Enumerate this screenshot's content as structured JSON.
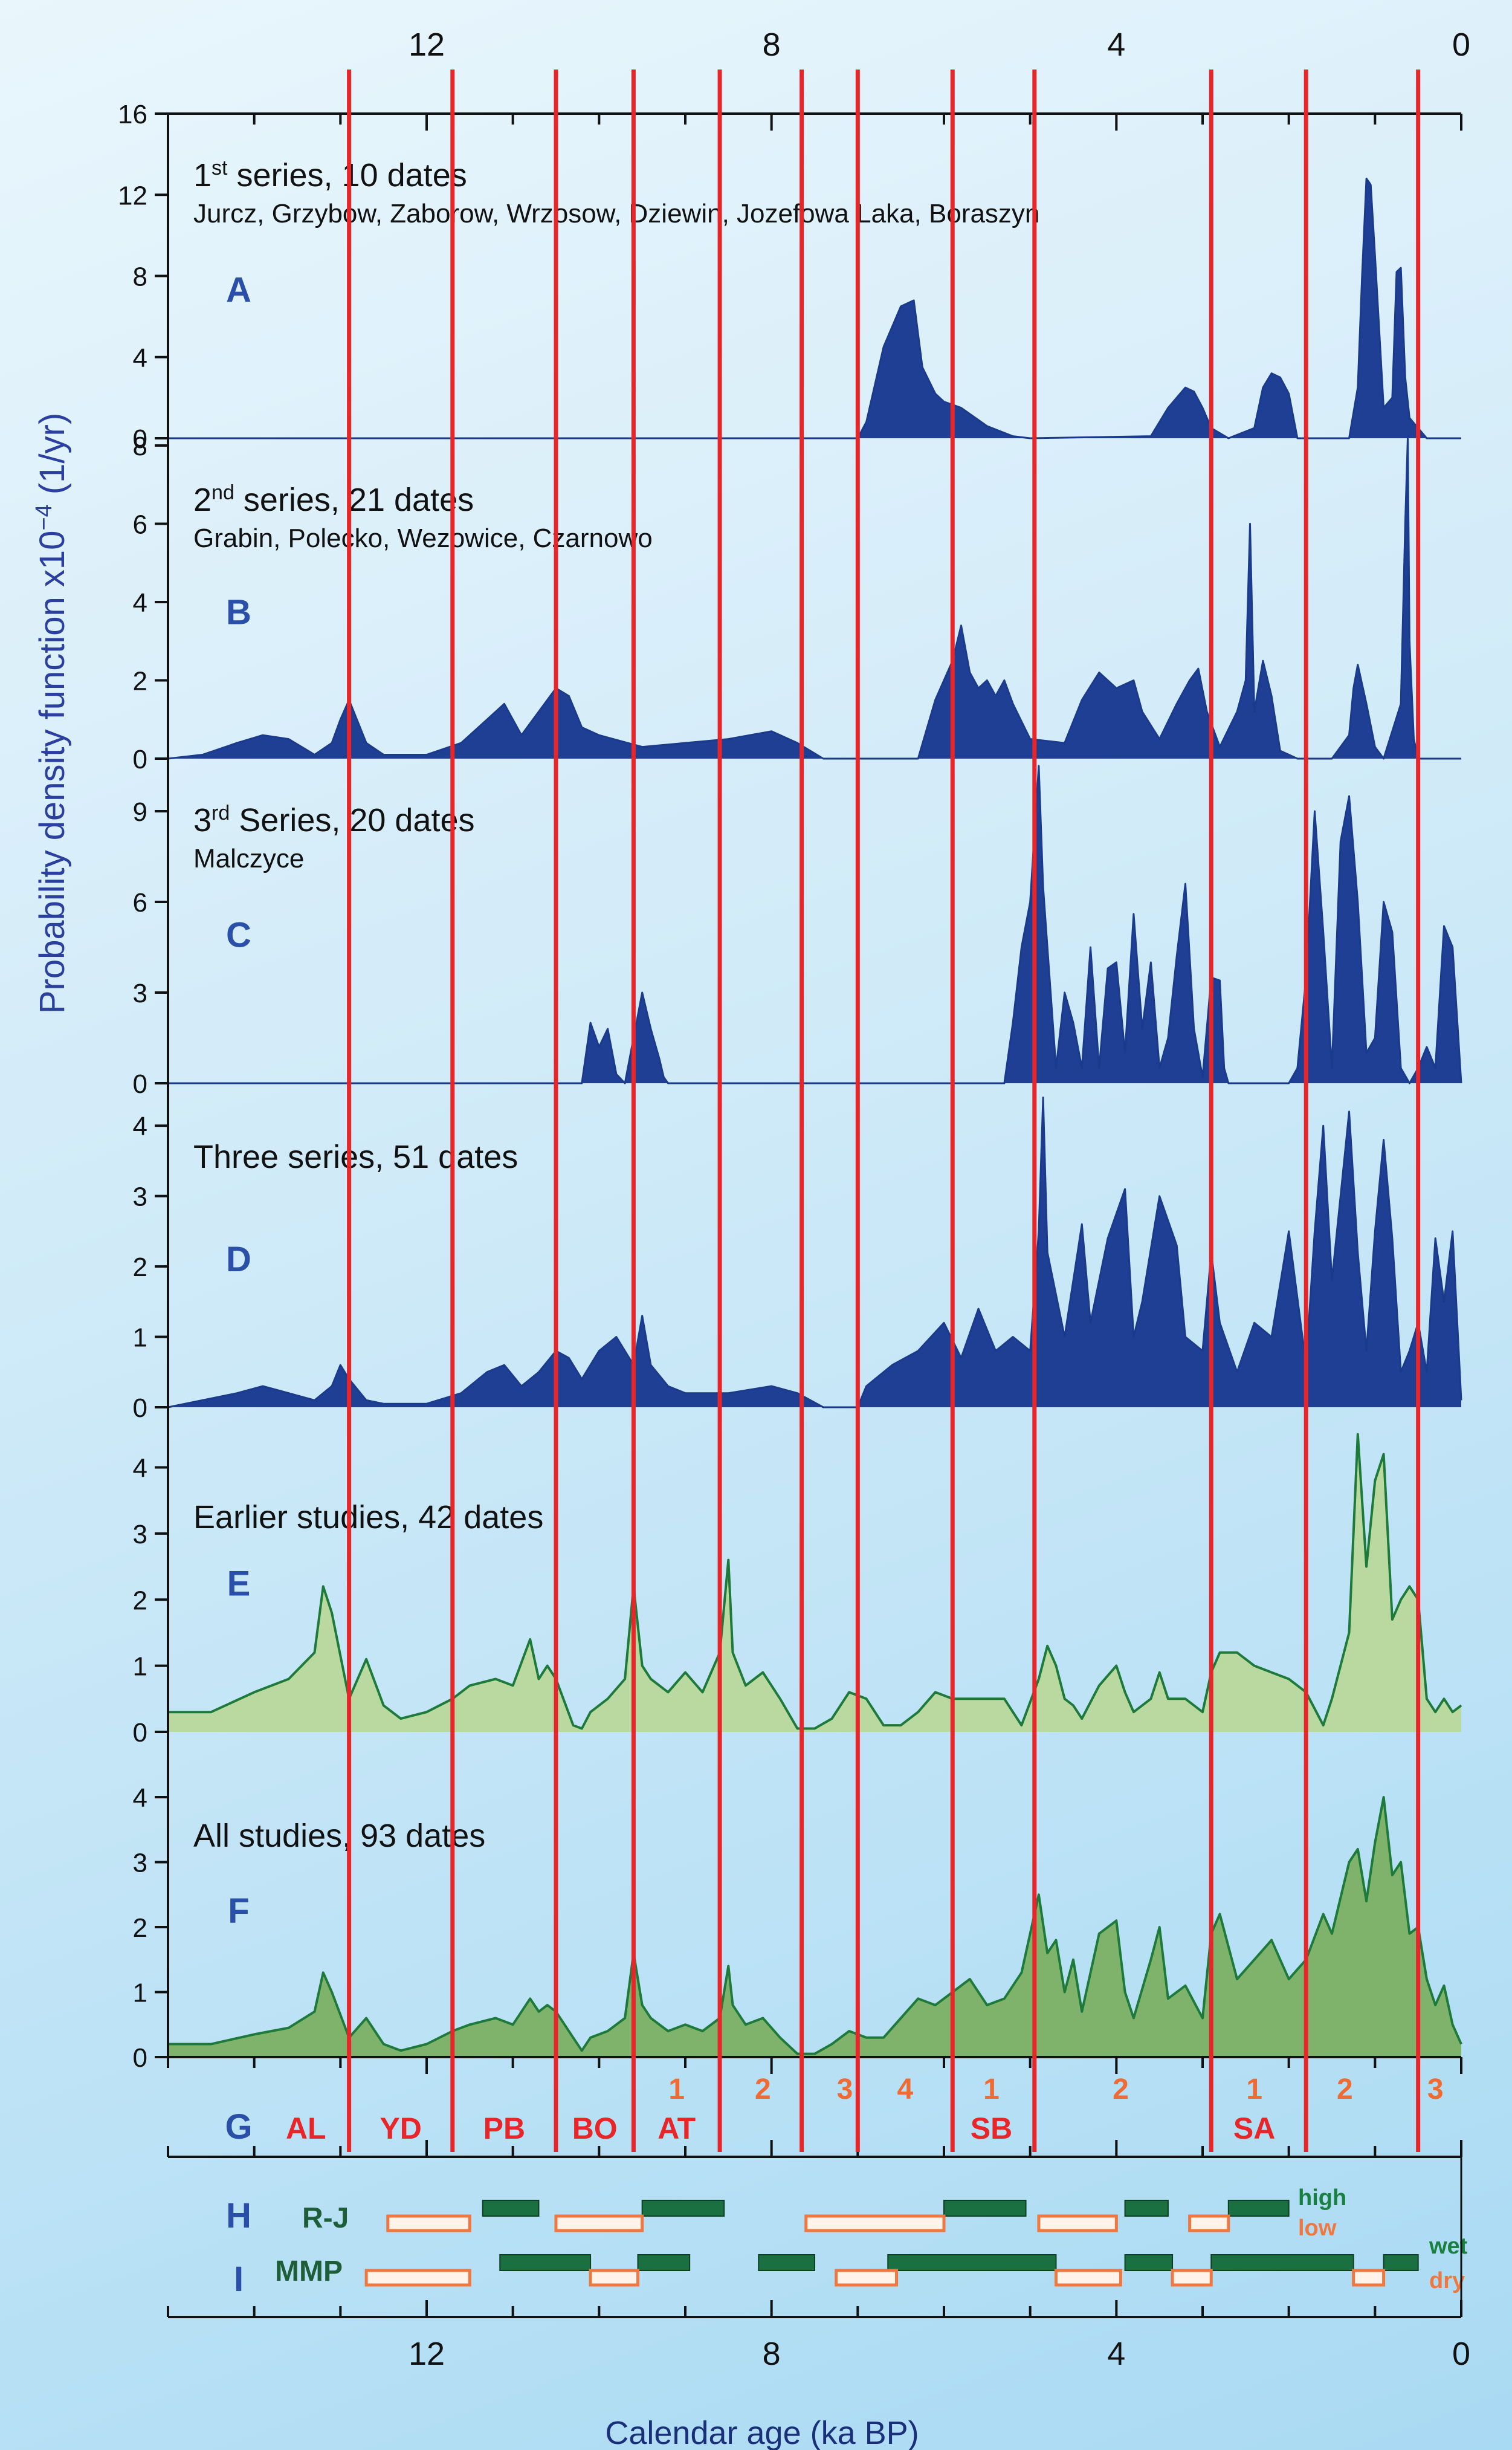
{
  "chart_data": [
    {
      "type": "area",
      "id": "A",
      "panel_letter": "A",
      "label_sup": "st",
      "label_num": "1",
      "label_rest": " series, 10 dates",
      "sites": "Jurcz, Grzybow, Zaborow, Wrzosow, Dziewin, Jozefowa Laka, Boraszyn",
      "ylim": [
        0,
        16
      ],
      "yticks": [
        0,
        4,
        8,
        12,
        16
      ],
      "ytick_labels": [
        "0",
        "4",
        "8",
        "12",
        "16"
      ],
      "style": "dark",
      "x": [
        15.0,
        7.0,
        6.9,
        6.7,
        6.5,
        6.35,
        6.25,
        6.1,
        6.0,
        5.8,
        5.5,
        5.2,
        5.0,
        3.6,
        3.4,
        3.2,
        3.1,
        3.0,
        2.9,
        2.7,
        2.4,
        2.3,
        2.2,
        2.1,
        2.0,
        1.9,
        1.3,
        1.2,
        1.15,
        1.1,
        1.05,
        1.0,
        0.9,
        0.8,
        0.75,
        0.7,
        0.65,
        0.6,
        0.5,
        0.4,
        0.0
      ],
      "y": [
        0,
        0,
        0.8,
        4.5,
        6.5,
        6.8,
        3.5,
        2.2,
        1.8,
        1.5,
        0.6,
        0.1,
        0,
        0.1,
        1.5,
        2.5,
        2.3,
        1.5,
        0.5,
        0,
        0.5,
        2.5,
        3.2,
        3.0,
        2.2,
        0,
        0,
        2.5,
        8.0,
        12.8,
        12.5,
        9.0,
        1.5,
        2.0,
        8.2,
        8.4,
        3.0,
        1.0,
        0.5,
        0,
        0
      ]
    },
    {
      "type": "area",
      "id": "B",
      "panel_letter": "B",
      "label_sup": "nd",
      "label_num": "2",
      "label_rest": " series, 21 dates",
      "sites": "Grabin, Polecko, Wezowice, Czarnowo",
      "ylim": [
        0,
        8
      ],
      "yticks": [
        0,
        2,
        4,
        6,
        8
      ],
      "ytick_labels": [
        "0",
        "2",
        "4",
        "6",
        "8"
      ],
      "style": "dark",
      "x": [
        15.0,
        14.6,
        14.2,
        13.9,
        13.6,
        13.3,
        13.1,
        13.0,
        12.9,
        12.7,
        12.5,
        12.0,
        11.6,
        11.3,
        11.1,
        10.9,
        10.7,
        10.5,
        10.35,
        10.2,
        10.0,
        9.5,
        9.0,
        8.5,
        8.0,
        7.7,
        7.4,
        6.3,
        6.1,
        5.9,
        5.8,
        5.7,
        5.6,
        5.5,
        5.4,
        5.3,
        5.2,
        5.0,
        4.6,
        4.4,
        4.2,
        4.0,
        3.8,
        3.7,
        3.5,
        3.3,
        3.15,
        3.05,
        2.95,
        2.8,
        2.6,
        2.5,
        2.45,
        2.4,
        2.3,
        2.2,
        2.1,
        1.9,
        1.8,
        1.5,
        1.3,
        1.25,
        1.2,
        1.1,
        1.0,
        0.9,
        0.7,
        0.65,
        0.62,
        0.6,
        0.55,
        0.5,
        0.0
      ],
      "y": [
        0,
        0.1,
        0.4,
        0.6,
        0.5,
        0.1,
        0.4,
        1.0,
        1.5,
        0.4,
        0.1,
        0.1,
        0.4,
        1.0,
        1.4,
        0.6,
        1.2,
        1.8,
        1.6,
        0.8,
        0.6,
        0.3,
        0.4,
        0.5,
        0.7,
        0.4,
        0.0,
        0.0,
        1.5,
        2.5,
        3.4,
        2.2,
        1.8,
        2.0,
        1.6,
        2.0,
        1.4,
        0.5,
        0.4,
        1.5,
        2.2,
        1.8,
        2.0,
        1.2,
        0.5,
        1.4,
        2.0,
        2.3,
        1.2,
        0.3,
        1.2,
        2.0,
        6.0,
        1.2,
        2.5,
        1.6,
        0.2,
        0.0,
        0.0,
        0.0,
        0.6,
        1.8,
        2.4,
        1.4,
        0.3,
        0.0,
        1.4,
        6.0,
        8.2,
        3.0,
        0.5,
        0.0,
        0.0
      ]
    },
    {
      "type": "area",
      "id": "C",
      "panel_letter": "C",
      "label_sup": "rd",
      "label_num": "3",
      "label_rest": " Series, 20 dates",
      "sites": "Malczyce",
      "ylim": [
        0,
        10.5
      ],
      "yticks": [
        0,
        3,
        6,
        9
      ],
      "ytick_labels": [
        "0",
        "3",
        "6",
        "9"
      ],
      "style": "dark",
      "x": [
        15.0,
        10.2,
        10.1,
        10.0,
        9.9,
        9.8,
        9.7,
        9.6,
        9.5,
        9.4,
        9.3,
        9.25,
        9.2,
        5.3,
        5.2,
        5.1,
        5.0,
        4.9,
        4.85,
        4.8,
        4.7,
        4.6,
        4.5,
        4.4,
        4.3,
        4.2,
        4.1,
        4.0,
        3.9,
        3.8,
        3.7,
        3.6,
        3.5,
        3.4,
        3.3,
        3.2,
        3.1,
        3.0,
        2.9,
        2.8,
        2.75,
        2.7,
        2.5,
        2.0,
        1.9,
        1.8,
        1.7,
        1.6,
        1.5,
        1.4,
        1.3,
        1.2,
        1.1,
        1.0,
        0.9,
        0.8,
        0.7,
        0.6,
        0.5,
        0.4,
        0.3,
        0.2,
        0.1,
        0.0
      ],
      "y": [
        0,
        0,
        2.0,
        1.2,
        1.8,
        0.3,
        0.0,
        1.5,
        3.0,
        1.8,
        0.8,
        0.2,
        0,
        0,
        2.0,
        4.5,
        6.0,
        10.5,
        6.5,
        4.5,
        0.5,
        3.0,
        2.0,
        0.5,
        4.5,
        0.5,
        3.8,
        4.0,
        1.0,
        5.6,
        1.8,
        4.0,
        0.5,
        1.5,
        4.2,
        6.6,
        1.8,
        0.2,
        3.5,
        3.4,
        0.5,
        0,
        0,
        0,
        0.5,
        3.5,
        9.0,
        5.0,
        0.5,
        8.0,
        9.5,
        6.0,
        1.0,
        1.5,
        6.0,
        5.0,
        0.5,
        0.0,
        0.5,
        1.2,
        0.5,
        5.2,
        4.5,
        0.0
      ]
    },
    {
      "type": "area",
      "id": "D",
      "panel_letter": "D",
      "label_sup": "",
      "label_num": "",
      "label_rest": "Three series, 51 dates",
      "sites": "",
      "ylim": [
        0,
        4.5
      ],
      "yticks": [
        0,
        1,
        2,
        3,
        4
      ],
      "ytick_labels": [
        "0",
        "1",
        "2",
        "3",
        "4"
      ],
      "style": "dark",
      "x": [
        15.0,
        14.6,
        14.2,
        13.9,
        13.6,
        13.3,
        13.1,
        13.0,
        12.9,
        12.7,
        12.5,
        12.0,
        11.6,
        11.3,
        11.1,
        10.9,
        10.7,
        10.5,
        10.35,
        10.2,
        10.0,
        9.8,
        9.6,
        9.5,
        9.4,
        9.2,
        9.0,
        8.5,
        8.0,
        7.7,
        7.4,
        7.0,
        6.9,
        6.6,
        6.3,
        6.0,
        5.8,
        5.6,
        5.4,
        5.2,
        5.0,
        4.9,
        4.85,
        4.8,
        4.6,
        4.4,
        4.3,
        4.1,
        3.9,
        3.8,
        3.7,
        3.5,
        3.3,
        3.2,
        3.0,
        2.9,
        2.8,
        2.6,
        2.4,
        2.2,
        2.0,
        1.8,
        1.7,
        1.6,
        1.5,
        1.4,
        1.3,
        1.2,
        1.1,
        1.0,
        0.9,
        0.8,
        0.7,
        0.6,
        0.5,
        0.4,
        0.3,
        0.2,
        0.1,
        0.0
      ],
      "y": [
        0,
        0.1,
        0.2,
        0.3,
        0.2,
        0.1,
        0.3,
        0.6,
        0.4,
        0.1,
        0.05,
        0.05,
        0.2,
        0.5,
        0.6,
        0.3,
        0.5,
        0.8,
        0.7,
        0.4,
        0.8,
        1.0,
        0.6,
        1.3,
        0.6,
        0.3,
        0.2,
        0.2,
        0.3,
        0.2,
        0.0,
        0.0,
        0.3,
        0.6,
        0.8,
        1.2,
        0.7,
        1.4,
        0.8,
        1.0,
        0.8,
        2.5,
        4.4,
        2.2,
        1.0,
        2.6,
        1.2,
        2.4,
        3.1,
        1.0,
        1.5,
        3.0,
        2.3,
        1.0,
        0.8,
        2.2,
        1.2,
        0.5,
        1.2,
        1.0,
        2.5,
        0.6,
        2.5,
        4.0,
        1.8,
        3.0,
        4.2,
        2.2,
        0.8,
        2.5,
        3.8,
        2.4,
        0.5,
        0.8,
        1.2,
        0.5,
        2.4,
        1.5,
        2.5,
        0.1
      ]
    },
    {
      "type": "area",
      "id": "E",
      "panel_letter": "E",
      "label_sup": "",
      "label_num": "",
      "label_rest": "Earlier studies, 42 dates",
      "sites": "",
      "ylim": [
        0,
        4.8
      ],
      "yticks": [
        0,
        1,
        2,
        3,
        4
      ],
      "ytick_labels": [
        "0",
        "1",
        "2",
        "3",
        "4"
      ],
      "style": "light",
      "x": [
        15.0,
        14.5,
        14.0,
        13.6,
        13.3,
        13.2,
        13.1,
        12.9,
        12.7,
        12.5,
        12.3,
        12.0,
        11.7,
        11.5,
        11.2,
        11.0,
        10.8,
        10.7,
        10.6,
        10.5,
        10.3,
        10.2,
        10.1,
        9.9,
        9.7,
        9.6,
        9.5,
        9.4,
        9.2,
        9.0,
        8.8,
        8.6,
        8.5,
        8.45,
        8.3,
        8.1,
        7.9,
        7.7,
        7.5,
        7.3,
        7.1,
        6.9,
        6.7,
        6.5,
        6.3,
        6.1,
        5.9,
        5.7,
        5.5,
        5.3,
        5.1,
        4.9,
        4.8,
        4.7,
        4.6,
        4.5,
        4.4,
        4.2,
        4.0,
        3.9,
        3.8,
        3.6,
        3.5,
        3.4,
        3.2,
        3.0,
        2.9,
        2.8,
        2.6,
        2.4,
        2.2,
        2.0,
        1.8,
        1.6,
        1.5,
        1.3,
        1.2,
        1.1,
        1.0,
        0.9,
        0.8,
        0.7,
        0.6,
        0.5,
        0.4,
        0.3,
        0.2,
        0.1,
        0.0
      ],
      "y": [
        0.3,
        0.3,
        0.6,
        0.8,
        1.2,
        2.2,
        1.8,
        0.5,
        1.1,
        0.4,
        0.2,
        0.3,
        0.5,
        0.7,
        0.8,
        0.7,
        1.4,
        0.8,
        1.0,
        0.8,
        0.1,
        0.05,
        0.3,
        0.5,
        0.8,
        2.2,
        1.0,
        0.8,
        0.6,
        0.9,
        0.6,
        1.2,
        2.6,
        1.2,
        0.7,
        0.9,
        0.5,
        0.05,
        0.05,
        0.2,
        0.6,
        0.5,
        0.1,
        0.1,
        0.3,
        0.6,
        0.5,
        0.5,
        0.5,
        0.5,
        0.1,
        0.8,
        1.3,
        1.0,
        0.5,
        0.4,
        0.2,
        0.7,
        1.0,
        0.6,
        0.3,
        0.5,
        0.9,
        0.5,
        0.5,
        0.3,
        0.9,
        1.2,
        1.2,
        1.0,
        0.9,
        0.8,
        0.6,
        0.1,
        0.5,
        1.5,
        4.5,
        2.5,
        3.8,
        4.2,
        1.7,
        2.0,
        2.2,
        2.0,
        0.5,
        0.3,
        0.5,
        0.3,
        0.4
      ]
    },
    {
      "type": "area",
      "id": "F",
      "panel_letter": "F",
      "label_sup": "",
      "label_num": "",
      "label_rest": "All studies, 93 dates",
      "sites": "",
      "ylim": [
        0,
        4.8
      ],
      "yticks": [
        0,
        1,
        2,
        3,
        4
      ],
      "ytick_labels": [
        "0",
        "1",
        "2",
        "3",
        "4"
      ],
      "style": "medium",
      "x": [
        15.0,
        14.5,
        14.0,
        13.6,
        13.3,
        13.2,
        13.1,
        12.9,
        12.7,
        12.5,
        12.3,
        12.0,
        11.7,
        11.5,
        11.2,
        11.0,
        10.8,
        10.7,
        10.6,
        10.5,
        10.3,
        10.2,
        10.1,
        9.9,
        9.7,
        9.6,
        9.5,
        9.4,
        9.2,
        9.0,
        8.8,
        8.6,
        8.5,
        8.45,
        8.3,
        8.1,
        7.9,
        7.7,
        7.5,
        7.3,
        7.1,
        6.9,
        6.7,
        6.5,
        6.3,
        6.1,
        5.9,
        5.7,
        5.5,
        5.3,
        5.1,
        4.9,
        4.8,
        4.7,
        4.6,
        4.5,
        4.4,
        4.2,
        4.0,
        3.9,
        3.8,
        3.6,
        3.5,
        3.4,
        3.2,
        3.0,
        2.9,
        2.8,
        2.6,
        2.4,
        2.2,
        2.0,
        1.8,
        1.6,
        1.5,
        1.3,
        1.2,
        1.1,
        1.0,
        0.9,
        0.8,
        0.7,
        0.6,
        0.5,
        0.4,
        0.3,
        0.2,
        0.1,
        0.0
      ],
      "y": [
        0.2,
        0.2,
        0.35,
        0.45,
        0.7,
        1.3,
        1.0,
        0.3,
        0.6,
        0.2,
        0.1,
        0.2,
        0.4,
        0.5,
        0.6,
        0.5,
        0.9,
        0.7,
        0.8,
        0.7,
        0.3,
        0.1,
        0.3,
        0.4,
        0.6,
        1.6,
        0.8,
        0.6,
        0.4,
        0.5,
        0.4,
        0.6,
        1.4,
        0.8,
        0.5,
        0.6,
        0.3,
        0.05,
        0.05,
        0.2,
        0.4,
        0.3,
        0.3,
        0.6,
        0.9,
        0.8,
        1.0,
        1.2,
        0.8,
        0.9,
        1.3,
        2.5,
        1.6,
        1.8,
        1.0,
        1.5,
        0.7,
        1.9,
        2.1,
        1.0,
        0.6,
        1.5,
        2.0,
        0.9,
        1.1,
        0.6,
        1.9,
        2.2,
        1.2,
        1.5,
        1.8,
        1.2,
        1.5,
        2.2,
        1.9,
        3.0,
        3.2,
        2.4,
        3.3,
        4.0,
        2.8,
        3.0,
        1.9,
        2.0,
        1.2,
        0.8,
        1.1,
        0.5,
        0.2
      ]
    }
  ],
  "axis": {
    "xlabel": "Calendar age  (ka BP)",
    "ylabel_main": "Probability density function  x10",
    "ylabel_exp": "−4",
    "ylabel_unit": " (1/yr)",
    "xlim": [
      15,
      0
    ],
    "xticks_labeled": [
      12,
      8,
      4,
      0
    ],
    "xtick_labels": [
      "12",
      "8",
      "4",
      "0"
    ]
  },
  "boundaries_ka": [
    12.9,
    11.7,
    10.5,
    9.6,
    8.6,
    7.65,
    7.0,
    5.9,
    4.95,
    2.9,
    1.8,
    0.5
  ],
  "periods": {
    "letter": "G",
    "main": [
      {
        "label": "AL",
        "x": 13.4
      },
      {
        "label": "YD",
        "x": 12.3
      },
      {
        "label": "PB",
        "x": 11.1
      },
      {
        "label": "BO",
        "x": 10.05
      },
      {
        "label": "AT",
        "x": 9.1
      },
      {
        "label": "SB",
        "x": 5.45
      },
      {
        "label": "SA",
        "x": 2.4
      }
    ],
    "sub": [
      {
        "label": "1",
        "x": 9.1
      },
      {
        "label": "2",
        "x": 8.1
      },
      {
        "label": "3",
        "x": 7.15
      },
      {
        "label": "4",
        "x": 6.45
      },
      {
        "label": "1",
        "x": 5.45
      },
      {
        "label": "2",
        "x": 3.95
      },
      {
        "label": "1",
        "x": 2.4
      },
      {
        "label": "2",
        "x": 1.35
      },
      {
        "label": "3",
        "x": 0.3
      }
    ]
  },
  "rj": {
    "letter": "H",
    "name": "R-J",
    "high_label": "high",
    "low_label": "low",
    "high": [
      [
        11.35,
        10.7
      ],
      [
        9.5,
        8.55
      ],
      [
        6.0,
        5.05
      ],
      [
        3.9,
        3.4
      ],
      [
        2.7,
        2.0
      ]
    ],
    "low": [
      [
        12.45,
        11.5
      ],
      [
        10.5,
        9.5
      ],
      [
        7.6,
        6.0
      ],
      [
        4.9,
        4.0
      ],
      [
        3.15,
        2.7
      ]
    ]
  },
  "mmp": {
    "letter": "I",
    "name": "MMP",
    "wet_label": "wet",
    "dry_label": "dry",
    "wet": [
      [
        11.15,
        10.1
      ],
      [
        9.55,
        8.95
      ],
      [
        8.15,
        7.5
      ],
      [
        6.65,
        4.7
      ],
      [
        3.9,
        3.35
      ],
      [
        2.9,
        1.25
      ],
      [
        0.9,
        0.5
      ]
    ],
    "dry": [
      [
        12.7,
        11.5
      ],
      [
        10.1,
        9.55
      ],
      [
        7.25,
        6.55
      ],
      [
        4.7,
        3.95
      ],
      [
        3.35,
        2.9
      ],
      [
        1.25,
        0.9
      ]
    ]
  },
  "colors": {
    "dark_fill": "#1f3f95",
    "dark_line": "#1a3a8c",
    "light_fill": "#b9d9a0",
    "medium_fill": "#7fb36b",
    "green_line": "#1e7a3a",
    "red_line": "#e8262a",
    "wet_box": "#1a7040",
    "dry_box": "#f07840",
    "letter_blue": "#2a4fa8",
    "period_red": "#e8262a",
    "sub_orange": "#ef6b33",
    "proxy_dark": "#1d5e38"
  }
}
